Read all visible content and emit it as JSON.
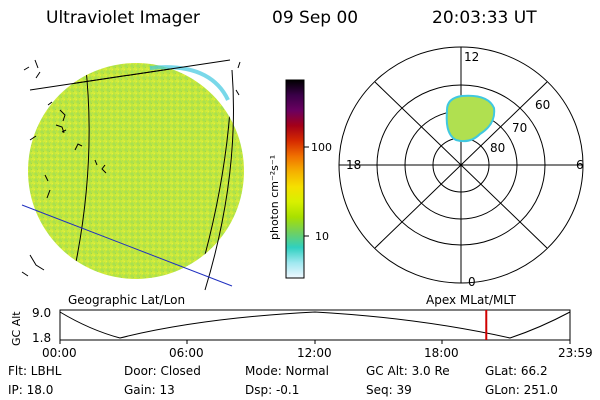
{
  "header": {
    "title": "Ultraviolet Imager",
    "date": "09 Sep 00",
    "time": "20:03:33 UT"
  },
  "colorbar": {
    "unit_label": "photon cm⁻²s⁻¹",
    "ticks": [
      "100",
      "10"
    ],
    "colors": [
      "#000000",
      "#3a0048",
      "#6a0060",
      "#a40018",
      "#d62a00",
      "#f07000",
      "#f5b000",
      "#f5e000",
      "#d8f000",
      "#a8e000",
      "#70d060",
      "#30d0c0",
      "#a0e8f0",
      "#f0f8ff"
    ]
  },
  "polar_plot": {
    "mlt_labels": {
      "top": "12",
      "left": "18",
      "right": "6",
      "bottom": "0"
    },
    "lat_labels": [
      "60",
      "70",
      "80"
    ]
  },
  "timeline": {
    "left_label": "Geographic Lat/Lon",
    "right_label": "Apex MLat/MLT",
    "axis_title": "GC Alt",
    "y_max": "9.0",
    "y_min": "1.8",
    "ticks": [
      "00:00",
      "06:00",
      "12:00",
      "18:00",
      "23:59"
    ],
    "marker_time_hours": 20.06,
    "marker_color": "#d00000"
  },
  "info": {
    "flt": "Flt: LBHL",
    "ip": "IP: 18.0",
    "door": "Door: Closed",
    "gain": "Gain: 13",
    "mode": "Mode: Normal",
    "dsp": "Dsp:    -0.1",
    "gc_alt": "GC Alt: 3.0 Re",
    "seq": "Seq: 39",
    "glat": "GLat:   66.2",
    "glon": "GLon: 251.0"
  }
}
